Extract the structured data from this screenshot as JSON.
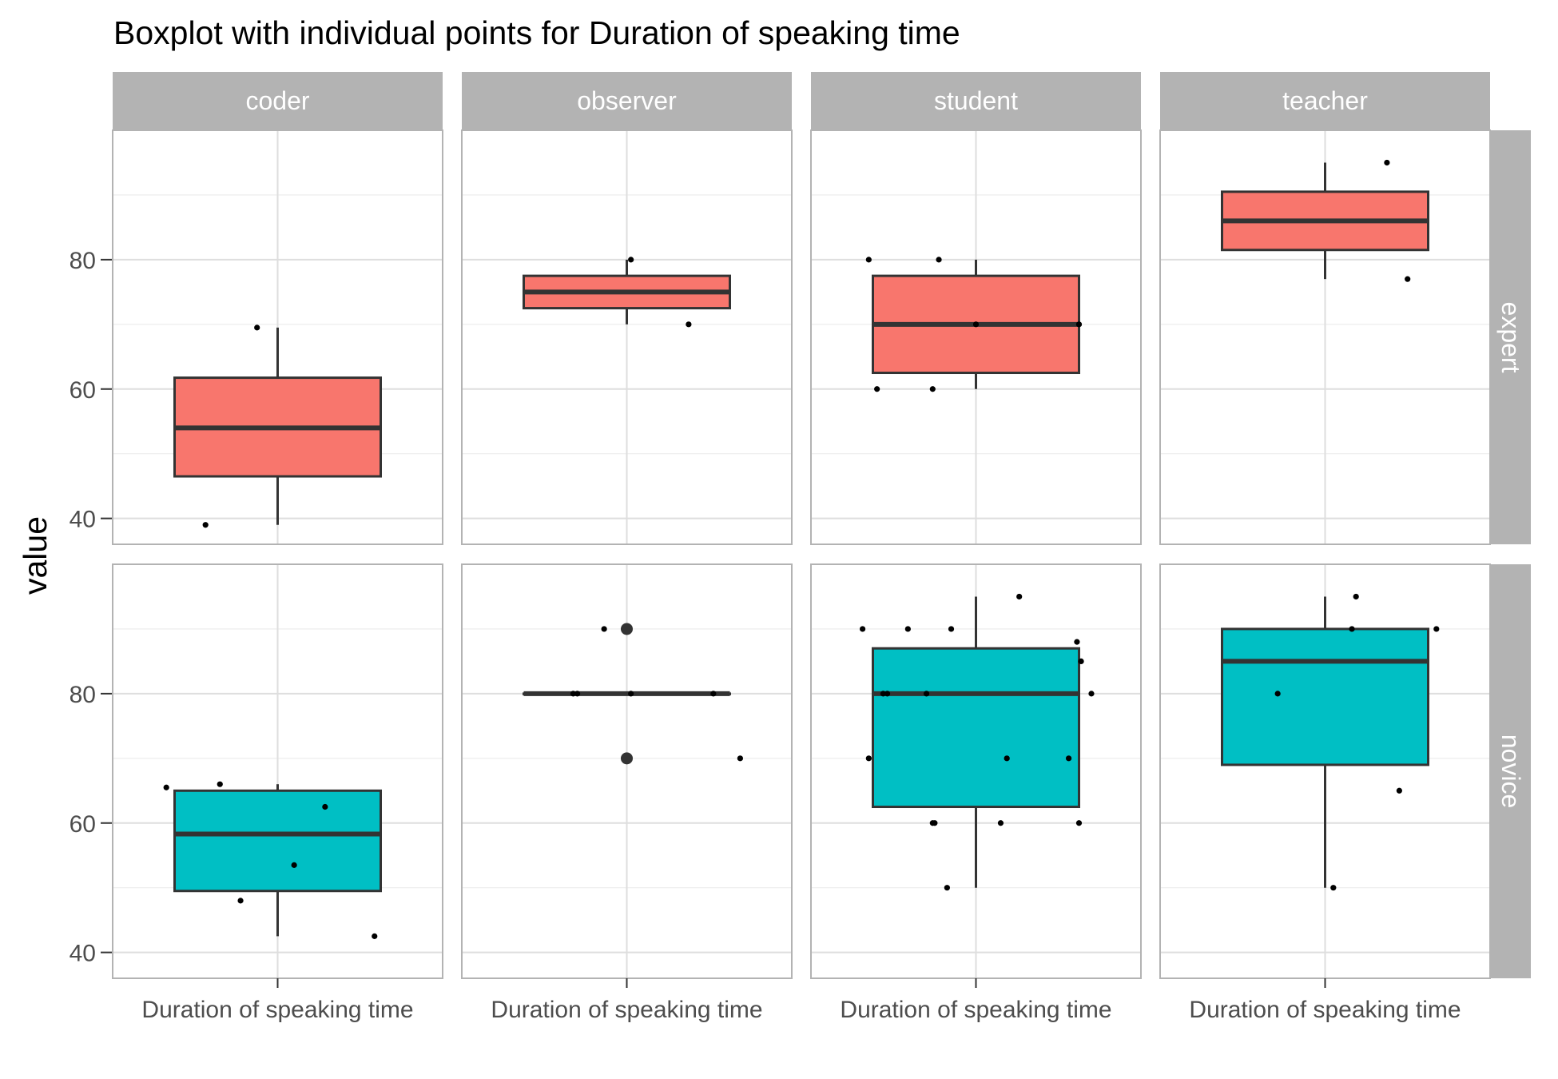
{
  "chart_data": {
    "type": "boxplot",
    "title": "Boxplot with individual points for Duration of speaking time",
    "xlabel": "",
    "ylabel": "value",
    "x_category": "Duration of speaking time",
    "column_facets": [
      "coder",
      "observer",
      "student",
      "teacher"
    ],
    "row_facets": [
      "expert",
      "novice"
    ],
    "ylim": [
      36,
      100
    ],
    "yticks": [
      40,
      60,
      80
    ],
    "grid": true,
    "legend": "none",
    "colors": {
      "expert": "#F8766D",
      "novice": "#00BFC4"
    },
    "panels": [
      {
        "row": "expert",
        "col": "coder",
        "box": {
          "min": 39,
          "q1": 46.5,
          "median": 54,
          "q3": 61.75,
          "max": 69.5
        },
        "points": [
          [
            -0.35,
            39
          ],
          [
            -0.1,
            69.5
          ]
        ],
        "outliers": []
      },
      {
        "row": "expert",
        "col": "observer",
        "box": {
          "min": 70,
          "q1": 72.5,
          "median": 75,
          "q3": 77.5,
          "max": 80
        },
        "points": [
          [
            0.02,
            80
          ],
          [
            0.3,
            70
          ]
        ],
        "outliers": []
      },
      {
        "row": "expert",
        "col": "student",
        "box": {
          "min": 60,
          "q1": 62.5,
          "median": 70,
          "q3": 77.5,
          "max": 80
        },
        "points": [
          [
            -0.52,
            80
          ],
          [
            -0.18,
            80
          ],
          [
            -0.48,
            60
          ],
          [
            -0.21,
            60
          ],
          [
            0.0,
            70
          ],
          [
            0.5,
            70
          ]
        ],
        "outliers": []
      },
      {
        "row": "expert",
        "col": "teacher",
        "box": {
          "min": 77,
          "q1": 81.5,
          "median": 86,
          "q3": 90.5,
          "max": 95
        },
        "points": [
          [
            0.3,
            95
          ],
          [
            0.4,
            77
          ]
        ],
        "outliers": []
      },
      {
        "row": "novice",
        "col": "coder",
        "box": {
          "min": 42.5,
          "q1": 49.5,
          "median": 58.3,
          "q3": 65,
          "max": 66
        },
        "points": [
          [
            -0.54,
            65.5
          ],
          [
            -0.28,
            66
          ],
          [
            -0.18,
            48
          ],
          [
            0.08,
            53.5
          ],
          [
            0.23,
            62.5
          ],
          [
            0.47,
            42.5
          ]
        ],
        "outliers": []
      },
      {
        "row": "novice",
        "col": "observer",
        "box": {
          "min": 80,
          "q1": 80,
          "median": 80,
          "q3": 80,
          "max": 80
        },
        "points": [
          [
            -0.11,
            90
          ],
          [
            -0.24,
            80
          ],
          [
            -0.26,
            80
          ],
          [
            0.02,
            80
          ],
          [
            0.42,
            80
          ],
          [
            0.55,
            70
          ]
        ],
        "outliers": [
          90,
          70
        ]
      },
      {
        "row": "novice",
        "col": "student",
        "box": {
          "min": 50,
          "q1": 62.5,
          "median": 80,
          "q3": 87,
          "max": 95
        },
        "points": [
          [
            -0.55,
            90
          ],
          [
            -0.33,
            90
          ],
          [
            -0.12,
            90
          ],
          [
            0.21,
            95
          ],
          [
            -0.52,
            70
          ],
          [
            -0.45,
            80
          ],
          [
            -0.43,
            80
          ],
          [
            -0.24,
            80
          ],
          [
            -0.2,
            60
          ],
          [
            -0.21,
            60
          ],
          [
            -0.14,
            50
          ],
          [
            0.12,
            60
          ],
          [
            0.15,
            70
          ],
          [
            0.45,
            70
          ],
          [
            0.51,
            85
          ],
          [
            0.49,
            88
          ],
          [
            0.56,
            80
          ],
          [
            0.5,
            60
          ]
        ],
        "outliers": []
      },
      {
        "row": "novice",
        "col": "teacher",
        "box": {
          "min": 50,
          "q1": 69,
          "median": 85,
          "q3": 90,
          "max": 95
        },
        "points": [
          [
            -0.23,
            80
          ],
          [
            0.04,
            50
          ],
          [
            0.13,
            90
          ],
          [
            0.15,
            95
          ],
          [
            0.36,
            65
          ],
          [
            0.54,
            90
          ]
        ],
        "outliers": []
      }
    ]
  }
}
